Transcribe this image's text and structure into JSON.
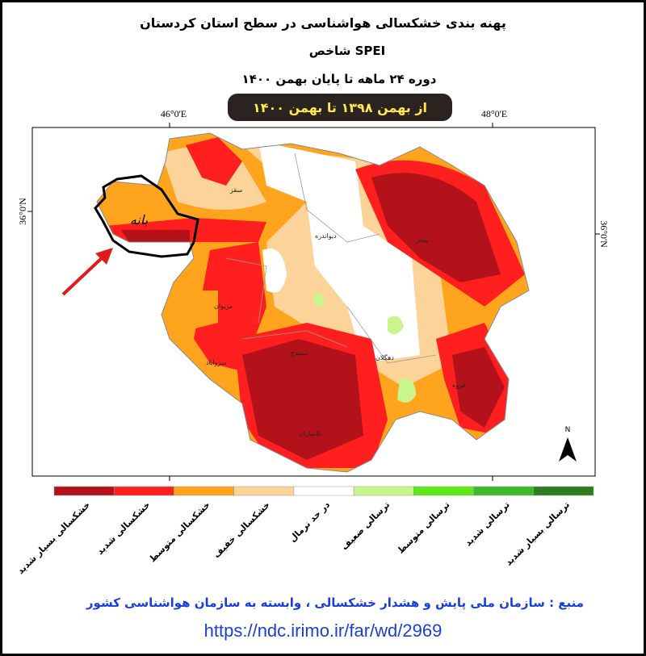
{
  "header": {
    "title": "پهنه بندی خشکسالی هواشناسی در سطح استان کردستان",
    "index": "شاخص SPEI",
    "period": "دوره   ۲۴ ماهه تا پایان بهمن ۱۴۰۰",
    "banner": "از بهمن ۱۳۹۸ تا بهمن ۱۴۰۰"
  },
  "map": {
    "coords": {
      "lon_left": "46°0'E",
      "lon_right": "48°0'E",
      "lat_left": "36°0'N",
      "lat_right": "36°0'N"
    },
    "north": "N",
    "annotation": "بانه",
    "cities": [
      "سقز",
      "دیواندره",
      "بیجار",
      "مریوان",
      "سروآباد",
      "سنندج",
      "دهگلان",
      "قروه",
      "کامیاران"
    ]
  },
  "legend": [
    {
      "label": "خشکسالی بسیار شدید",
      "color": "#b3121b"
    },
    {
      "label": "خشکسالی شدید",
      "color": "#ff1f1f"
    },
    {
      "label": "خشکسالی متوسط",
      "color": "#ffa41c"
    },
    {
      "label": "خشکسالی خفیف",
      "color": "#fcd49a"
    },
    {
      "label": "در حد نرمال",
      "color": "#ffffff"
    },
    {
      "label": "ترسالی ضعیف",
      "color": "#c8f58c"
    },
    {
      "label": "ترسالی متوسط",
      "color": "#5ee81a"
    },
    {
      "label": "ترسالی شدید",
      "color": "#3fb82c"
    },
    {
      "label": "ترسالی بسیار شدید",
      "color": "#2e7d1f"
    }
  ],
  "footer": {
    "source": "منبع : سازمان ملی پایش و هشدار خشکسالی ، وابسته به سازمان هواشناسی کشور",
    "url": "https://ndc.irimo.ir/far/wd/2969"
  }
}
